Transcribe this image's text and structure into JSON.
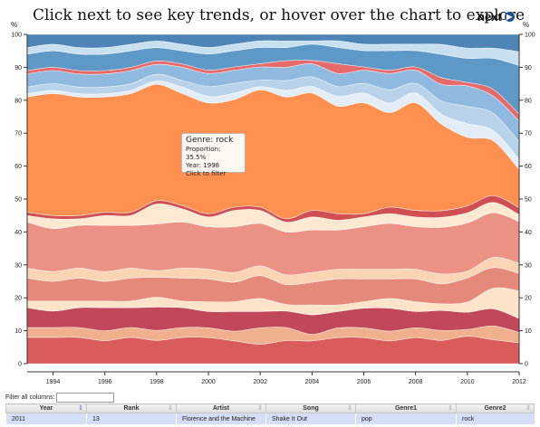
{
  "header": {
    "headline": "Click next to see key trends, or hover over the chart to explore",
    "next_label": "next",
    "next_icon": "chevron-right-icon"
  },
  "chart_data": {
    "type": "area",
    "stacked": true,
    "normalized_percent": true,
    "ylabel_left": "%",
    "ylabel_right": "%",
    "ylim": [
      0,
      100
    ],
    "xlim": [
      1993,
      2012
    ],
    "y_ticks": [
      "0",
      "10",
      "20",
      "30",
      "40",
      "50",
      "60",
      "70",
      "80",
      "90",
      "100"
    ],
    "x_ticks": [
      "1994",
      "1996",
      "1998",
      "2000",
      "2002",
      "2004",
      "2006",
      "2008",
      "2010",
      "2012"
    ],
    "x": [
      1993,
      1994,
      1995,
      1996,
      1997,
      1998,
      1999,
      2000,
      2001,
      2002,
      2003,
      2004,
      2005,
      2006,
      2007,
      2008,
      2009,
      2010,
      2011,
      2012
    ],
    "series_colors": [
      "#d95b5b",
      "#f0b08e",
      "#c0485a",
      "#fde3c8",
      "#e5897a",
      "#fbd4b5",
      "#eb9186",
      "#ffe9d2",
      "#cf4f52",
      "#ff9050",
      "#e3edf6",
      "#b7d2e9",
      "#8fb9de",
      "#e76a6b",
      "#5d98c6",
      "#c8dff0",
      "#4e84b6"
    ],
    "series": [
      {
        "values": [
          8,
          8,
          8,
          7,
          8,
          7,
          8,
          8,
          7,
          6,
          7,
          7,
          8,
          8,
          7,
          8,
          7,
          8,
          7,
          6
        ]
      },
      {
        "values": [
          3,
          3,
          3,
          3,
          3,
          3,
          3,
          3,
          3,
          5,
          4,
          2,
          3,
          3,
          3,
          3,
          3,
          2,
          4,
          3
        ]
      },
      {
        "values": [
          6,
          5,
          6,
          7,
          6,
          7,
          6,
          5,
          6,
          5,
          5,
          6,
          5,
          6,
          7,
          5,
          6,
          5,
          5,
          4
        ]
      },
      {
        "values": [
          2,
          3,
          2,
          2,
          2,
          3,
          2,
          3,
          3,
          4,
          2,
          3,
          2,
          2,
          3,
          3,
          2,
          3,
          6,
          8
        ]
      },
      {
        "values": [
          7,
          6,
          7,
          6,
          7,
          6,
          7,
          7,
          6,
          7,
          6,
          7,
          8,
          7,
          6,
          7,
          6,
          7,
          6,
          5
        ]
      },
      {
        "values": [
          3,
          3,
          3,
          3,
          3,
          2,
          3,
          3,
          3,
          3,
          3,
          3,
          3,
          3,
          3,
          3,
          3,
          2,
          3,
          3
        ]
      },
      {
        "values": [
          14,
          13,
          13,
          14,
          13,
          14,
          14,
          13,
          14,
          13,
          13,
          13,
          12,
          13,
          14,
          13,
          14,
          14,
          13,
          12
        ]
      },
      {
        "values": [
          2,
          3,
          2,
          3,
          3,
          6,
          4,
          3,
          5,
          4,
          3,
          4,
          3,
          3,
          3,
          3,
          3,
          3,
          3,
          2
        ]
      },
      {
        "values": [
          1,
          1,
          1,
          1,
          1,
          1,
          1,
          1,
          1,
          1,
          1,
          2,
          2,
          1,
          2,
          2,
          2,
          2,
          2,
          2
        ]
      },
      {
        "values": [
          35,
          37,
          36,
          35,
          36,
          35,
          34,
          34,
          33,
          36,
          37,
          36,
          33,
          34,
          29,
          33,
          26,
          20,
          16,
          11
        ]
      },
      {
        "values": [
          1,
          1,
          1,
          1,
          1,
          1,
          2,
          2,
          2,
          1,
          2,
          2,
          3,
          3,
          3,
          3,
          3,
          4,
          3,
          3
        ]
      },
      {
        "values": [
          2,
          2,
          2,
          2,
          2,
          2,
          2,
          3,
          3,
          2,
          3,
          3,
          3,
          3,
          4,
          3,
          4,
          5,
          5,
          5
        ]
      },
      {
        "values": [
          4,
          4,
          4,
          4,
          4,
          3,
          4,
          4,
          4,
          4,
          4,
          4,
          4,
          4,
          5,
          4,
          5,
          6,
          5,
          6
        ]
      },
      {
        "values": [
          1,
          1,
          1,
          1,
          1,
          1,
          1,
          1,
          1,
          1,
          2,
          1,
          3,
          1,
          1,
          1,
          2,
          1,
          2,
          2
        ]
      },
      {
        "values": [
          5,
          5,
          5,
          5,
          5,
          4,
          4,
          5,
          5,
          5,
          4,
          5,
          5,
          5,
          6,
          5,
          7,
          7,
          9,
          14
        ]
      },
      {
        "values": [
          2,
          2,
          2,
          2,
          2,
          2,
          2,
          2,
          2,
          2,
          2,
          1,
          2,
          2,
          2,
          2,
          3,
          3,
          3,
          4
        ]
      },
      {
        "values": [
          4,
          3,
          4,
          4,
          3,
          2,
          3,
          4,
          3,
          2,
          2,
          2,
          2,
          3,
          3,
          3,
          3,
          4,
          4,
          5
        ]
      }
    ]
  },
  "tooltip": {
    "title": "Genre: rock",
    "proportion": "Proportion: 35.5%",
    "year": "Year: 1998",
    "action": "Click to filter"
  },
  "filter": {
    "label": "Filter all columns:",
    "value": ""
  },
  "table": {
    "columns": [
      "Year",
      "Rank",
      "Artist",
      "Song",
      "Genre1",
      "Genre2"
    ],
    "sort_icon": "sort-arrows-icon",
    "rows": [
      [
        "2011",
        "13",
        "Florence and the Machine",
        "Shake It Out",
        "pop",
        "rock"
      ]
    ]
  }
}
